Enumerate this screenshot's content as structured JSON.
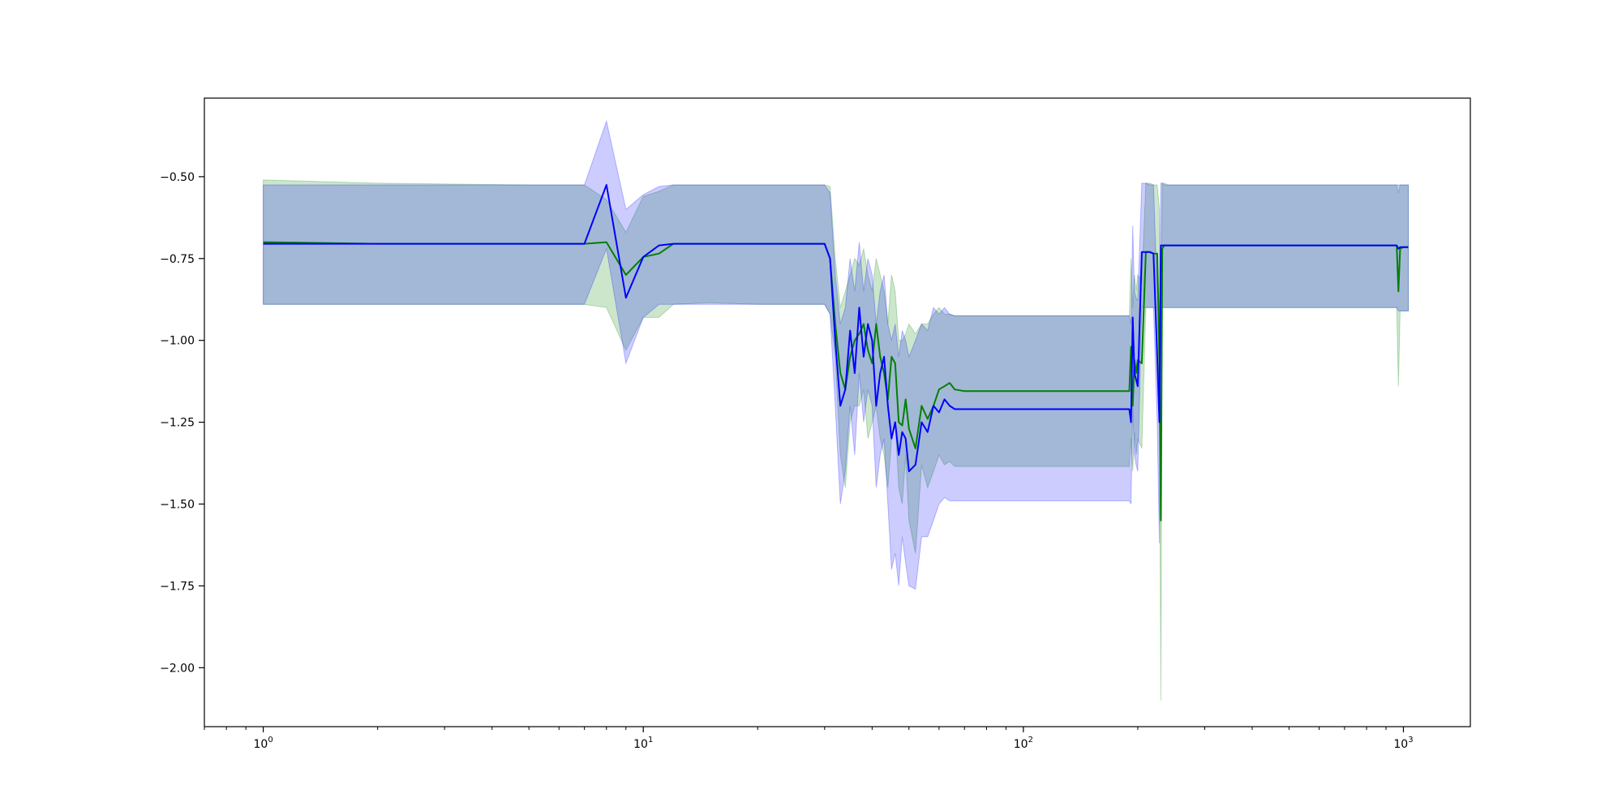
{
  "chart_data": {
    "type": "line",
    "title": "",
    "xlabel": "",
    "ylabel": "",
    "xscale": "log",
    "xlim": [
      0.7,
      1500
    ],
    "ylim": [
      -2.18,
      -0.26
    ],
    "grid": false,
    "legend": "none",
    "x_ticks": [
      {
        "value": 1,
        "base": "10",
        "exp": "0"
      },
      {
        "value": 10,
        "base": "10",
        "exp": "1"
      },
      {
        "value": 100,
        "base": "10",
        "exp": "2"
      },
      {
        "value": 1000,
        "base": "10",
        "exp": "3"
      }
    ],
    "y_ticks": [
      {
        "value": -0.5,
        "label": "−0.50"
      },
      {
        "value": -0.75,
        "label": "−0.75"
      },
      {
        "value": -1.0,
        "label": "−1.00"
      },
      {
        "value": -1.25,
        "label": "−1.25"
      },
      {
        "value": -1.5,
        "label": "−1.50"
      },
      {
        "value": -1.75,
        "label": "−1.75"
      },
      {
        "value": -2.0,
        "label": "−2.00"
      }
    ],
    "series": [
      {
        "color": "#008000",
        "band_color": "#008000",
        "band_opacity": 0.2,
        "x": [
          1,
          2,
          5,
          7,
          8,
          9,
          10,
          11,
          12,
          15,
          20,
          25,
          30,
          31,
          32,
          33,
          34,
          35,
          36,
          37,
          38,
          39,
          40,
          41,
          42,
          43,
          44,
          45,
          46,
          47,
          48,
          49,
          50,
          52,
          54,
          56,
          58,
          60,
          62,
          64,
          66,
          70,
          100,
          150,
          190,
          192,
          194,
          196,
          198,
          200,
          205,
          210,
          215,
          220,
          225,
          228,
          230,
          232,
          235,
          240,
          300,
          500,
          900,
          960,
          970,
          980,
          1000,
          1030
        ],
        "y": [
          -0.7,
          -0.705,
          -0.705,
          -0.705,
          -0.7,
          -0.8,
          -0.745,
          -0.735,
          -0.705,
          -0.705,
          -0.705,
          -0.705,
          -0.705,
          -0.75,
          -0.95,
          -1.1,
          -1.15,
          -1.05,
          -1.0,
          -0.98,
          -0.95,
          -1.03,
          -1.07,
          -0.95,
          -1.05,
          -1.1,
          -1.18,
          -1.05,
          -1.07,
          -1.25,
          -1.26,
          -1.18,
          -1.27,
          -1.33,
          -1.2,
          -1.24,
          -1.2,
          -1.15,
          -1.14,
          -1.13,
          -1.15,
          -1.155,
          -1.155,
          -1.155,
          -1.155,
          -1.02,
          -1.2,
          -1.06,
          -1.1,
          -1.06,
          -1.07,
          -0.73,
          -0.73,
          -0.735,
          -0.735,
          -1.05,
          -1.55,
          -0.72,
          -0.71,
          -0.71,
          -0.71,
          -0.71,
          -0.71,
          -0.71,
          -0.85,
          -0.72,
          -0.715,
          -0.715
        ],
        "lower": [
          -0.89,
          -0.89,
          -0.89,
          -0.89,
          -0.9,
          -1.03,
          -0.93,
          -0.93,
          -0.89,
          -0.885,
          -0.89,
          -0.89,
          -0.89,
          -0.92,
          -1.05,
          -1.35,
          -1.45,
          -1.25,
          -1.2,
          -1.2,
          -1.15,
          -1.3,
          -1.25,
          -1.2,
          -1.3,
          -1.35,
          -1.45,
          -1.3,
          -1.25,
          -1.45,
          -1.5,
          -1.35,
          -1.55,
          -1.65,
          -1.38,
          -1.45,
          -1.4,
          -1.35,
          -1.38,
          -1.37,
          -1.385,
          -1.385,
          -1.385,
          -1.385,
          -1.385,
          -1.3,
          -1.4,
          -1.28,
          -1.35,
          -1.3,
          -1.33,
          -0.9,
          -0.9,
          -0.9,
          -0.9,
          -1.2,
          -2.1,
          -0.9,
          -0.9,
          -0.9,
          -0.9,
          -0.9,
          -0.9,
          -0.9,
          -1.14,
          -0.91,
          -0.91,
          -0.91
        ],
        "upper": [
          -0.51,
          -0.52,
          -0.525,
          -0.525,
          -0.57,
          -0.67,
          -0.56,
          -0.545,
          -0.525,
          -0.525,
          -0.525,
          -0.525,
          -0.525,
          -0.53,
          -0.75,
          -0.9,
          -0.85,
          -0.8,
          -0.75,
          -0.77,
          -0.72,
          -0.8,
          -0.85,
          -0.75,
          -0.8,
          -0.85,
          -0.95,
          -0.8,
          -0.85,
          -1.0,
          -1.0,
          -0.98,
          -0.95,
          -0.98,
          -0.95,
          -0.95,
          -0.92,
          -0.9,
          -0.92,
          -0.92,
          -0.925,
          -0.925,
          -0.925,
          -0.925,
          -0.925,
          -0.75,
          -0.9,
          -0.8,
          -0.85,
          -0.8,
          -0.82,
          -0.52,
          -0.52,
          -0.525,
          -0.525,
          -0.6,
          -1.0,
          -0.52,
          -0.52,
          -0.525,
          -0.525,
          -0.525,
          -0.525,
          -0.525,
          -0.55,
          -0.525,
          -0.525,
          -0.525
        ]
      },
      {
        "color": "#0000ff",
        "band_color": "#0000ff",
        "band_opacity": 0.2,
        "x": [
          1,
          2,
          5,
          7,
          8,
          9,
          10,
          11,
          12,
          15,
          20,
          25,
          30,
          31,
          32,
          33,
          34,
          35,
          36,
          37,
          38,
          39,
          40,
          41,
          42,
          43,
          44,
          45,
          46,
          47,
          48,
          49,
          50,
          52,
          54,
          56,
          58,
          60,
          62,
          64,
          66,
          70,
          100,
          150,
          190,
          192,
          194,
          196,
          198,
          200,
          205,
          210,
          215,
          220,
          225,
          228,
          230,
          232,
          235,
          240,
          300,
          500,
          900,
          960,
          970,
          980,
          1000,
          1030
        ],
        "y": [
          -0.705,
          -0.705,
          -0.705,
          -0.705,
          -0.525,
          -0.87,
          -0.745,
          -0.71,
          -0.705,
          -0.705,
          -0.705,
          -0.705,
          -0.705,
          -0.75,
          -1.0,
          -1.2,
          -1.15,
          -0.97,
          -1.1,
          -0.9,
          -1.05,
          -0.95,
          -1.0,
          -1.2,
          -1.1,
          -1.05,
          -1.2,
          -1.3,
          -1.25,
          -1.35,
          -1.28,
          -1.3,
          -1.4,
          -1.38,
          -1.25,
          -1.28,
          -1.2,
          -1.22,
          -1.18,
          -1.2,
          -1.21,
          -1.21,
          -1.21,
          -1.21,
          -1.21,
          -1.25,
          -0.93,
          -1.1,
          -1.12,
          -1.14,
          -0.73,
          -0.73,
          -0.73,
          -0.735,
          -1.05,
          -1.25,
          -0.71,
          -0.71,
          -0.71,
          -0.71,
          -0.71,
          -0.71,
          -0.71,
          -0.71,
          -0.72,
          -0.715,
          -0.715,
          -0.715
        ],
        "lower": [
          -0.89,
          -0.89,
          -0.89,
          -0.89,
          -0.72,
          -1.07,
          -0.93,
          -0.89,
          -0.89,
          -0.89,
          -0.89,
          -0.89,
          -0.89,
          -0.92,
          -1.2,
          -1.5,
          -1.4,
          -1.2,
          -1.35,
          -1.1,
          -1.25,
          -1.15,
          -1.2,
          -1.45,
          -1.35,
          -1.3,
          -1.5,
          -1.7,
          -1.65,
          -1.75,
          -1.6,
          -1.68,
          -1.75,
          -1.76,
          -1.6,
          -1.6,
          -1.55,
          -1.5,
          -1.48,
          -1.49,
          -1.49,
          -1.49,
          -1.49,
          -1.49,
          -1.49,
          -1.5,
          -1.2,
          -1.35,
          -1.38,
          -1.4,
          -0.9,
          -0.9,
          -0.9,
          -0.9,
          -1.25,
          -1.62,
          -0.9,
          -0.9,
          -0.9,
          -0.9,
          -0.9,
          -0.9,
          -0.9,
          -0.9,
          -0.91,
          -0.91,
          -0.91,
          -0.91
        ],
        "upper": [
          -0.525,
          -0.525,
          -0.525,
          -0.525,
          -0.33,
          -0.6,
          -0.555,
          -0.53,
          -0.525,
          -0.525,
          -0.525,
          -0.525,
          -0.525,
          -0.55,
          -0.8,
          -0.95,
          -0.9,
          -0.75,
          -0.85,
          -0.7,
          -0.85,
          -0.75,
          -0.8,
          -0.95,
          -0.85,
          -0.8,
          -0.95,
          -1.0,
          -0.95,
          -1.05,
          -0.97,
          -1.0,
          -1.05,
          -1.0,
          -0.95,
          -0.97,
          -0.9,
          -0.92,
          -0.9,
          -0.92,
          -0.925,
          -0.925,
          -0.925,
          -0.925,
          -0.925,
          -0.95,
          -0.65,
          -0.85,
          -0.87,
          -0.88,
          -0.52,
          -0.52,
          -0.525,
          -0.525,
          -0.85,
          -0.9,
          -0.52,
          -0.52,
          -0.525,
          -0.525,
          -0.525,
          -0.525,
          -0.525,
          -0.525,
          -0.525,
          -0.525,
          -0.525,
          -0.525
        ]
      }
    ]
  }
}
